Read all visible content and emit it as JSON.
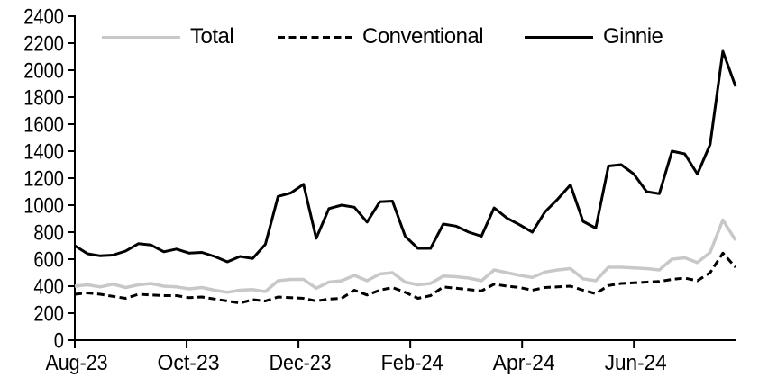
{
  "chart_data": {
    "type": "line",
    "title": "",
    "legend_position": "top",
    "background_color": "#ffffff",
    "axis_color": "#000000",
    "x_axis": {
      "unit": "weekly",
      "tick_labels": [
        "Aug-23",
        "Oct-23",
        "Dec-23",
        "Feb-24",
        "Apr-24",
        "Jun-24"
      ],
      "tick_week_positions": [
        0,
        8.8,
        17.6,
        26.4,
        35.2,
        44
      ],
      "weeks_total": 53
    },
    "y_axis": {
      "min": 0,
      "max": 2400,
      "step": 200,
      "tick_labels": [
        "0",
        "200",
        "400",
        "600",
        "800",
        "1000",
        "1200",
        "1400",
        "1600",
        "1800",
        "2000",
        "2200",
        "2400"
      ]
    },
    "series": [
      {
        "name": "Total",
        "color": "#c8c8c8",
        "dash": "solid",
        "values": [
          400,
          410,
          395,
          415,
          390,
          410,
          420,
          400,
          395,
          380,
          390,
          370,
          355,
          370,
          375,
          360,
          440,
          450,
          450,
          385,
          430,
          440,
          480,
          440,
          490,
          500,
          430,
          410,
          420,
          475,
          470,
          460,
          440,
          520,
          500,
          480,
          465,
          505,
          520,
          530,
          455,
          440,
          540,
          540,
          535,
          530,
          520,
          600,
          610,
          575,
          650,
          890,
          740
        ]
      },
      {
        "name": "Conventional",
        "color": "#000000",
        "dash": "dashed",
        "values": [
          340,
          350,
          340,
          325,
          310,
          340,
          335,
          330,
          330,
          315,
          320,
          305,
          290,
          275,
          300,
          290,
          320,
          315,
          310,
          290,
          305,
          310,
          370,
          335,
          370,
          390,
          355,
          310,
          330,
          395,
          385,
          375,
          365,
          415,
          400,
          390,
          370,
          390,
          395,
          400,
          370,
          345,
          405,
          420,
          425,
          430,
          435,
          450,
          460,
          440,
          500,
          645,
          540
        ]
      },
      {
        "name": "Ginnie",
        "color": "#000000",
        "dash": "solid",
        "values": [
          700,
          640,
          625,
          630,
          660,
          715,
          705,
          655,
          675,
          645,
          650,
          620,
          580,
          620,
          605,
          710,
          1065,
          1090,
          1155,
          755,
          975,
          1000,
          985,
          875,
          1025,
          1030,
          770,
          680,
          680,
          860,
          845,
          800,
          770,
          980,
          905,
          855,
          800,
          950,
          1045,
          1150,
          880,
          830,
          1290,
          1300,
          1230,
          1100,
          1085,
          1400,
          1380,
          1230,
          1450,
          2140,
          1880
        ]
      }
    ]
  }
}
